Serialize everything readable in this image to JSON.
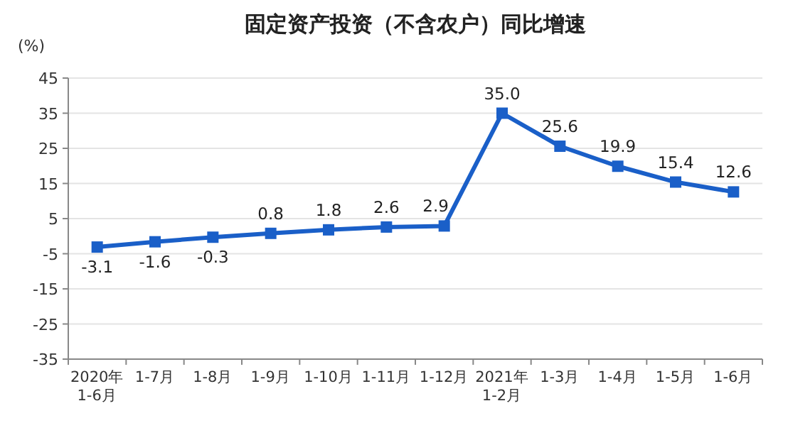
{
  "chart_data": {
    "type": "line",
    "title": "固定资产投资（不含农户）同比增速",
    "ylabel": "(%)",
    "categories": [
      "2020年\n1-6月",
      "1-7月",
      "1-8月",
      "1-9月",
      "1-10月",
      "1-11月",
      "1-12月",
      "2021年\n1-2月",
      "1-3月",
      "1-4月",
      "1-5月",
      "1-6月"
    ],
    "series": [
      {
        "color": "#1a5fc8",
        "values": [
          -3.1,
          -1.6,
          -0.3,
          0.8,
          1.8,
          2.6,
          2.9,
          35.0,
          25.6,
          19.9,
          15.4,
          12.6
        ],
        "value_labels": [
          "-3.1",
          "-1.6",
          "-0.3",
          "0.8",
          "1.8",
          "2.6",
          "2.9",
          "35.0",
          "25.6",
          "19.9",
          "15.4",
          "12.6"
        ]
      }
    ],
    "ylim": [
      -35,
      45
    ],
    "yticks": [
      -35,
      -25,
      -15,
      -5,
      5,
      15,
      25,
      35,
      45
    ],
    "grid": "y",
    "marker": "square",
    "line_style": "solid"
  }
}
